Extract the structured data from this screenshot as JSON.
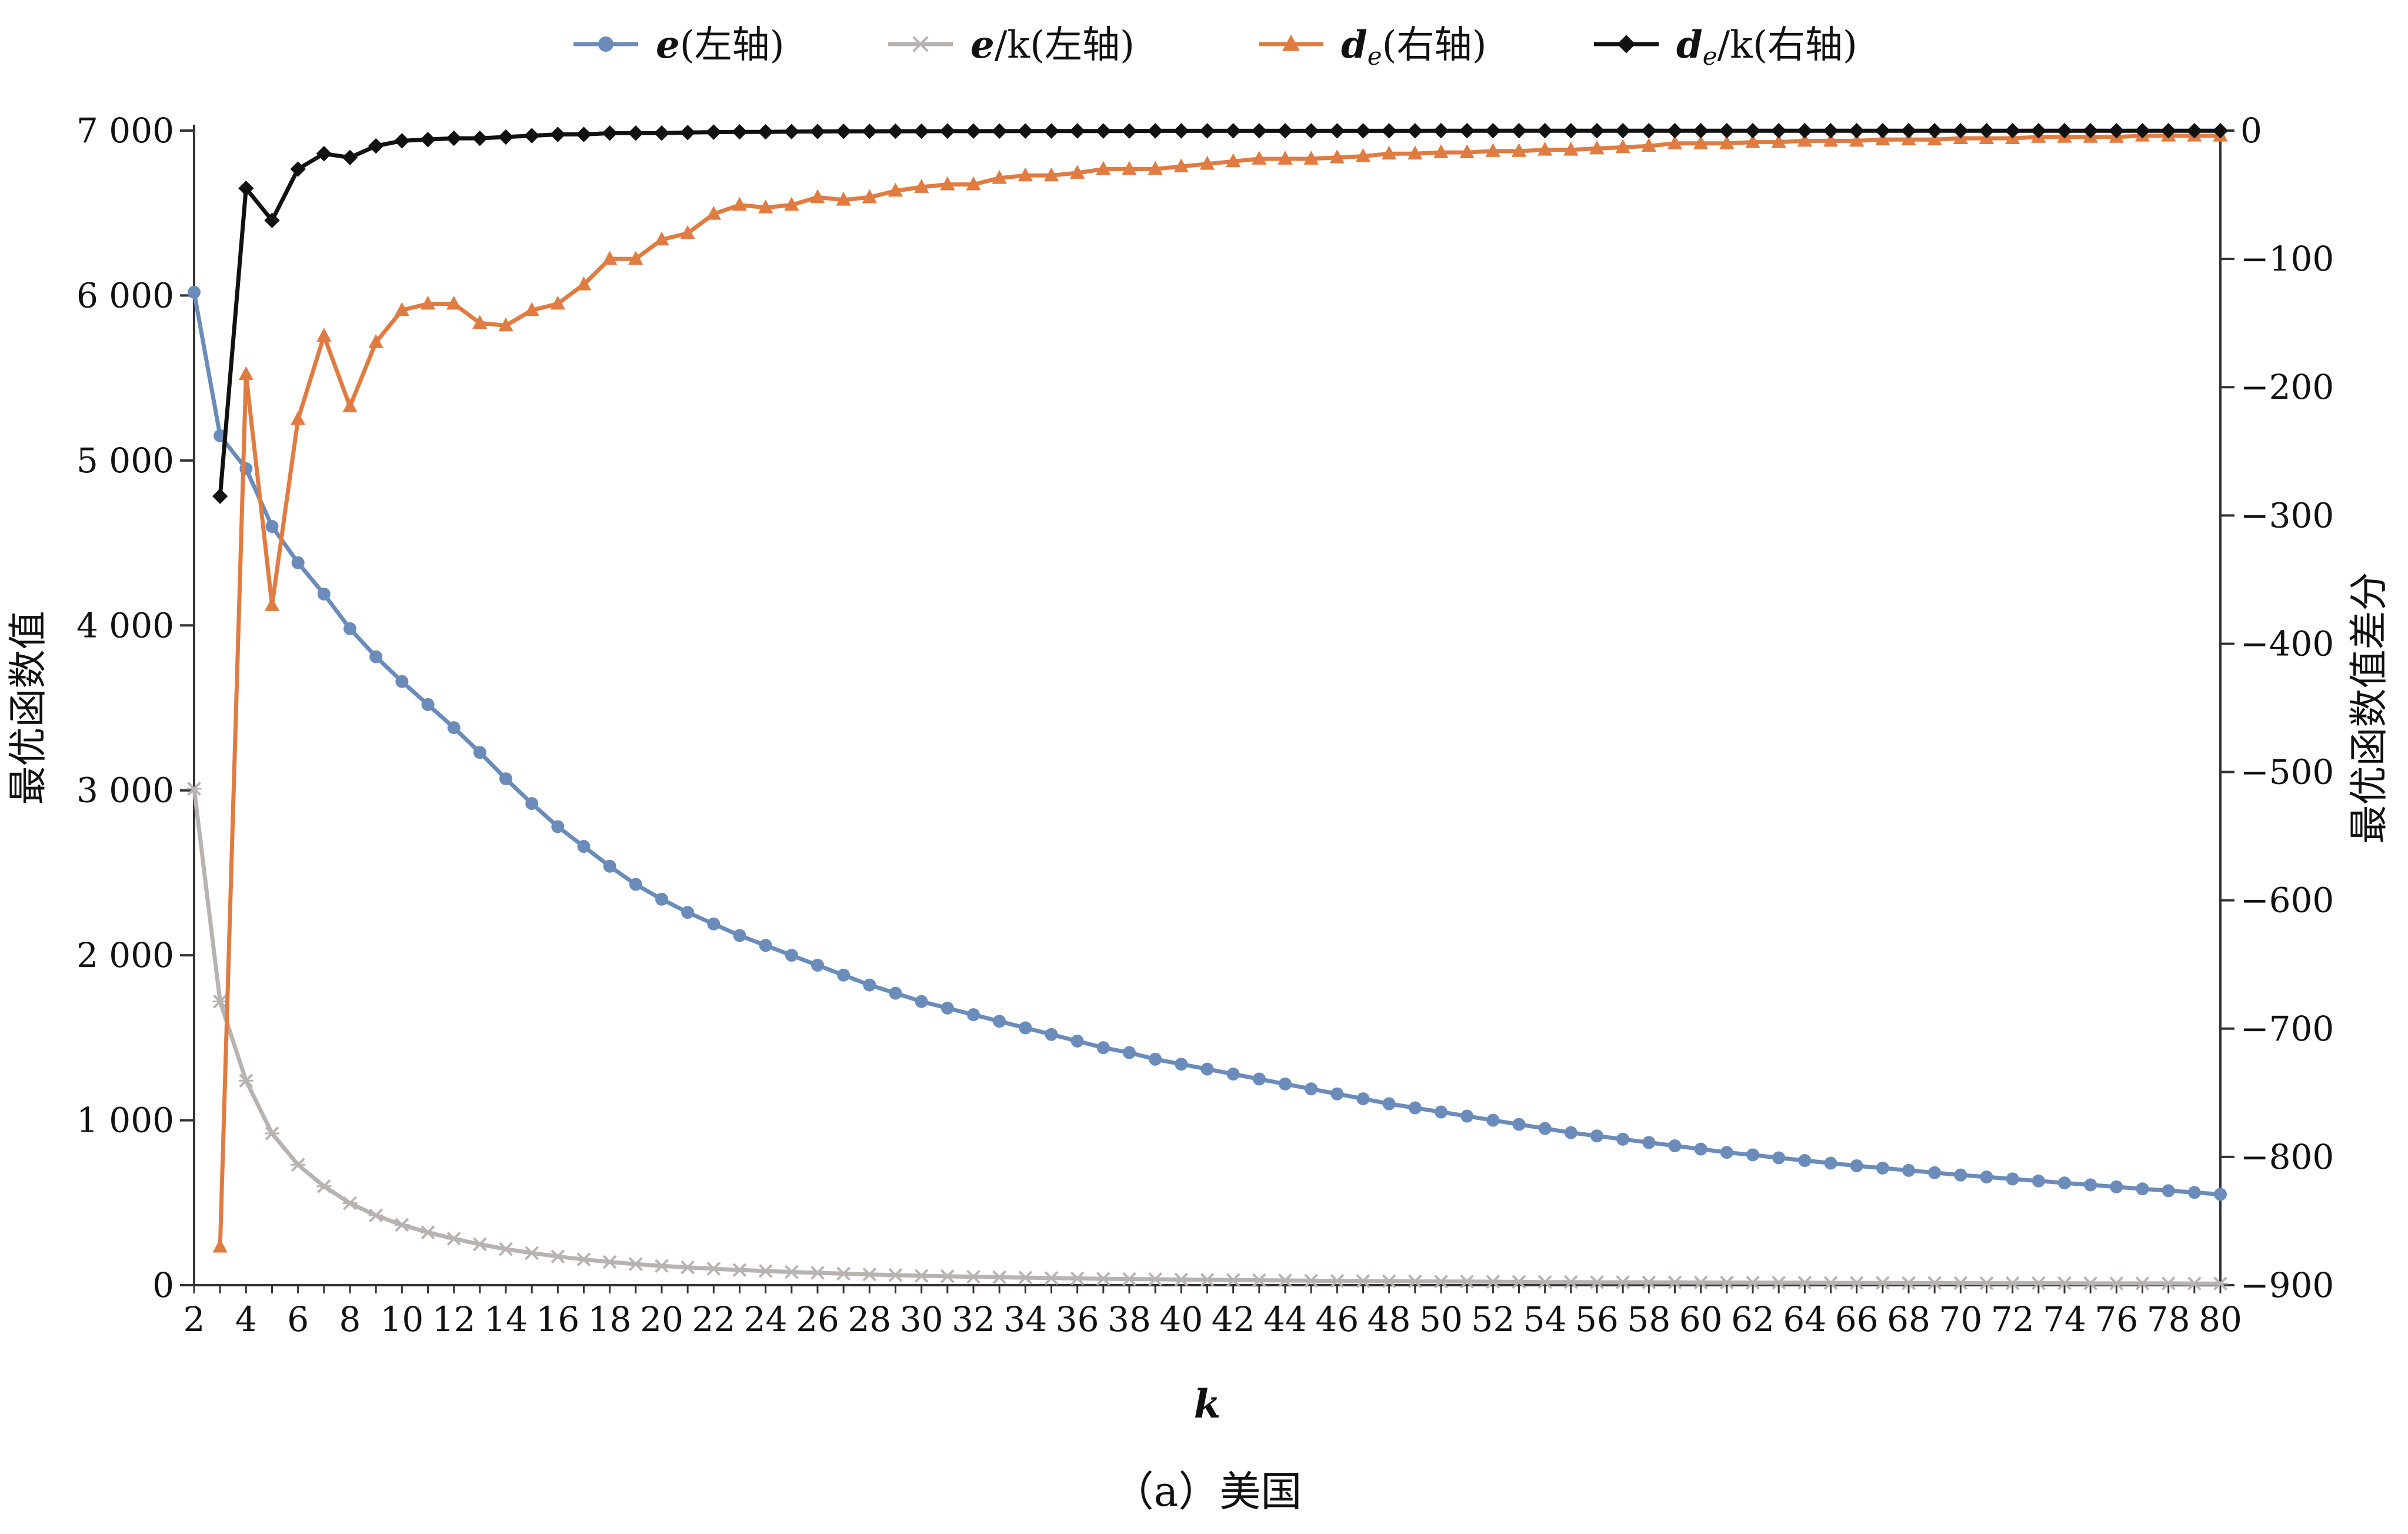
{
  "chart_data": {
    "type": "line",
    "title": "",
    "caption": "（a）美国",
    "xlabel": "k",
    "ylabel_left": "最优函数值",
    "ylabel_right": "最优函数值差分",
    "x": {
      "start": 2,
      "end": 80,
      "step": 1
    },
    "x_ticks": [
      2,
      4,
      6,
      8,
      10,
      12,
      14,
      16,
      18,
      20,
      22,
      24,
      26,
      28,
      30,
      32,
      34,
      36,
      38,
      40,
      42,
      44,
      46,
      48,
      50,
      52,
      54,
      56,
      58,
      60,
      62,
      64,
      66,
      68,
      70,
      72,
      74,
      76,
      78,
      80
    ],
    "y_left": {
      "min": 0,
      "max": 7000,
      "ticks": [
        0,
        1000,
        2000,
        3000,
        4000,
        5000,
        6000,
        7000
      ],
      "tick_labels": [
        "0",
        "1 000",
        "2 000",
        "3 000",
        "4 000",
        "5 000",
        "6 000",
        "7 000"
      ]
    },
    "y_right": {
      "min": -900,
      "max": 0,
      "ticks": [
        -900,
        -800,
        -700,
        -600,
        -500,
        -400,
        -300,
        -200,
        -100,
        0
      ],
      "tick_labels": [
        "−900",
        "−800",
        "−700",
        "−600",
        "−500",
        "−400",
        "−300",
        "−200",
        "−100",
        "0"
      ]
    },
    "legend_position": "top",
    "grid": false,
    "series": [
      {
        "name": "e(左轴)",
        "legend_main": "e",
        "legend_sub": "",
        "legend_tail": "(左轴)",
        "axis": "left",
        "color": "#6b8cba",
        "marker": "circle",
        "x_start": 2,
        "values": [
          6020,
          5150,
          4950,
          4600,
          4380,
          4190,
          3980,
          3810,
          3660,
          3520,
          3380,
          3230,
          3070,
          2920,
          2780,
          2660,
          2540,
          2430,
          2340,
          2260,
          2190,
          2120,
          2060,
          2000,
          1940,
          1880,
          1820,
          1770,
          1720,
          1680,
          1640,
          1600,
          1560,
          1520,
          1480,
          1440,
          1410,
          1370,
          1340,
          1310,
          1280,
          1250,
          1220,
          1190,
          1160,
          1130,
          1100,
          1075,
          1050,
          1025,
          1000,
          975,
          950,
          925,
          905,
          885,
          865,
          845,
          825,
          805,
          790,
          772,
          756,
          740,
          724,
          710,
          696,
          682,
          668,
          656,
          644,
          632,
          620,
          608,
          596,
          584,
          573,
          562,
          551
        ]
      },
      {
        "name": "e/k(左轴)",
        "legend_main": "e",
        "legend_sub": "",
        "legend_tail": "/k(左轴)",
        "axis": "left",
        "color": "#b8b3b0",
        "marker": "cross",
        "x_start": 2,
        "values": [
          3010,
          1720,
          1240,
          920,
          730,
          600,
          497,
          423,
          366,
          320,
          282,
          248,
          219,
          195,
          174,
          156,
          141,
          128,
          117,
          108,
          100,
          92,
          86,
          80,
          75,
          70,
          65,
          61,
          57,
          54,
          51,
          48,
          46,
          43,
          41,
          39,
          37,
          36,
          34,
          33,
          31,
          30,
          29,
          27,
          26,
          25,
          24,
          23,
          22,
          22,
          21,
          20,
          19,
          19,
          18,
          18,
          17,
          17,
          16,
          16,
          15,
          15,
          15,
          14,
          14,
          14,
          13,
          13,
          13,
          12,
          12,
          12,
          12,
          11,
          11,
          11,
          11,
          10,
          10
        ]
      },
      {
        "name": "de(右轴)",
        "legend_main": "d",
        "legend_sub": "e",
        "legend_tail": "(右轴)",
        "axis": "right",
        "color": "#e07b42",
        "marker": "triangle",
        "x_start": 3,
        "values": [
          -870,
          -190,
          -370,
          -225,
          -160,
          -215,
          -165,
          -140,
          -135,
          -135,
          -150,
          -152,
          -140,
          -135,
          -120,
          -100,
          -100,
          -85,
          -80,
          -65,
          -58,
          -60,
          -58,
          -52,
          -54,
          -52,
          -47,
          -44,
          -42,
          -42,
          -37,
          -35,
          -35,
          -33,
          -30,
          -30,
          -30,
          -28,
          -26,
          -24,
          -22,
          -22,
          -22,
          -21,
          -20,
          -18,
          -18,
          -17,
          -17,
          -16,
          -16,
          -15,
          -15,
          -14,
          -13,
          -12,
          -10,
          -10,
          -10,
          -9,
          -9,
          -8,
          -8,
          -8,
          -7,
          -7,
          -7,
          -6,
          -6,
          -6,
          -5,
          -5,
          -5,
          -5,
          -4,
          -4,
          -4,
          -4
        ]
      },
      {
        "name": "de/k(右轴)",
        "legend_main": "d",
        "legend_sub": "e",
        "legend_tail": "/k(右轴)",
        "axis": "right",
        "color": "#111111",
        "marker": "diamond",
        "x_start": 3,
        "values": [
          -285,
          -45,
          -70,
          -30,
          -18,
          -21,
          -12,
          -8,
          -7,
          -6,
          -6,
          -5,
          -4,
          -3,
          -3,
          -2,
          -2,
          -2,
          -1.5,
          -1.2,
          -1,
          -1,
          -0.8,
          -0.7,
          -0.6,
          -0.6,
          -0.5,
          -0.5,
          -0.4,
          -0.4,
          -0.4,
          -0.3,
          -0.3,
          -0.3,
          -0.3,
          -0.3,
          -0.2,
          -0.2,
          -0.2,
          -0.2,
          -0.2,
          -0.2,
          -0.2,
          -0.2,
          -0.2,
          -0.2,
          -0.2,
          -0.1,
          -0.1,
          -0.1,
          -0.1,
          -0.1,
          -0.1,
          -0.1,
          -0.1,
          -0.1,
          -0.1,
          -0.1,
          -0.1,
          -0.1,
          -0.1,
          -0.1,
          -0.1,
          -0.1,
          -0.1,
          -0.1,
          -0.1,
          -0.1,
          -0.1,
          -0.1,
          -0.1,
          -0.1,
          -0.1,
          -0.1,
          -0.1,
          -0.1,
          -0.1,
          -0.1
        ]
      }
    ]
  }
}
